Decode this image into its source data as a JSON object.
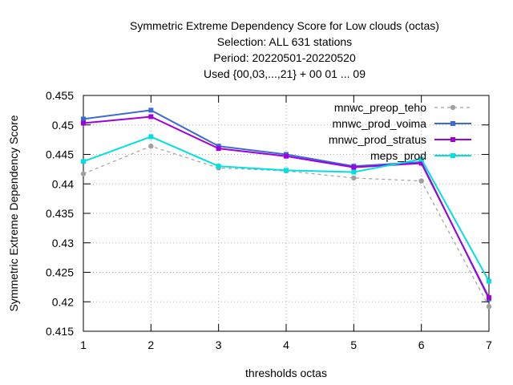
{
  "chart_data": {
    "type": "line",
    "title": [
      "Symmetric Extreme Dependency Score  for Low clouds (octas)",
      "Selection: ALL    631 stations",
      "Period: 20220501-20220520",
      "Used {00,03,...,21} + 00 01 ... 09"
    ],
    "xlabel": "thresholds octas",
    "ylabel": "Symmetric Extreme Dependency Score",
    "x": [
      1,
      2,
      3,
      4,
      5,
      6,
      7
    ],
    "xlim": [
      1,
      7
    ],
    "ylim": [
      0.415,
      0.455
    ],
    "yticks": [
      "0.415",
      "0.42",
      "0.425",
      "0.43",
      "0.435",
      "0.44",
      "0.445",
      "0.45",
      "0.455"
    ],
    "xticks": [
      "1",
      "2",
      "3",
      "4",
      "5",
      "6",
      "7"
    ],
    "grid": true,
    "legend_position": "top-right",
    "series": [
      {
        "name": "mnwc_preop_teho",
        "color": "#a0a0a0",
        "dashed": true,
        "values": [
          0.4417,
          0.4464,
          0.4427,
          0.4422,
          0.441,
          0.4405,
          0.4192
        ]
      },
      {
        "name": "mnwc_prod_voima",
        "color": "#3a6ad4",
        "dashed": false,
        "values": [
          0.451,
          0.4525,
          0.4464,
          0.445,
          0.443,
          0.4437,
          0.4205
        ]
      },
      {
        "name": "mnwc_prod_stratus",
        "color": "#a000e0",
        "dashed": false,
        "values": [
          0.4503,
          0.4514,
          0.446,
          0.4447,
          0.4428,
          0.4435,
          0.4207
        ]
      },
      {
        "name": "meps_prod",
        "color": "#00e0e0",
        "dashed": false,
        "values": [
          0.4438,
          0.448,
          0.443,
          0.4423,
          0.442,
          0.4442,
          0.4235
        ]
      }
    ]
  }
}
